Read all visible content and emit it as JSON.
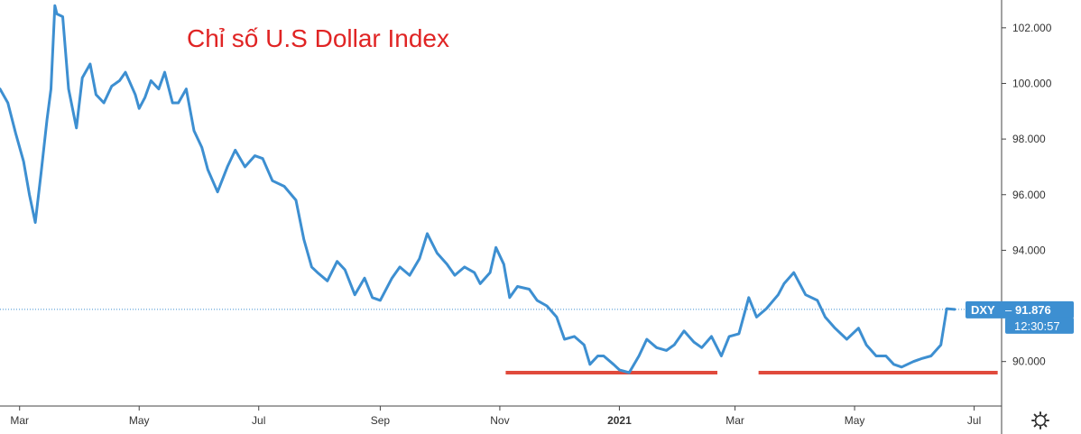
{
  "chart_data": {
    "type": "line",
    "title": "Chỉ số U.S Dollar Index",
    "xlabel": "",
    "ylabel": "",
    "x_ticks": [
      {
        "label": "Mar",
        "date": "2020-03-01",
        "bold": false
      },
      {
        "label": "May",
        "date": "2020-05-01",
        "bold": false
      },
      {
        "label": "Jul",
        "date": "2020-07-01",
        "bold": false
      },
      {
        "label": "Sep",
        "date": "2020-09-01",
        "bold": false
      },
      {
        "label": "Nov",
        "date": "2020-11-01",
        "bold": false
      },
      {
        "label": "2021",
        "date": "2021-01-01",
        "bold": true
      },
      {
        "label": "Mar",
        "date": "2021-03-01",
        "bold": false
      },
      {
        "label": "May",
        "date": "2021-05-01",
        "bold": false
      },
      {
        "label": "Jul",
        "date": "2021-07-01",
        "bold": false
      }
    ],
    "y_ticks": [
      "102.000",
      "100.000",
      "98.000",
      "96.000",
      "94.000",
      "90.000"
    ],
    "y_tick_values": [
      102,
      100,
      98,
      96,
      94,
      90
    ],
    "ylim": [
      88.4,
      103.0
    ],
    "xlim": [
      "2020-02-20",
      "2021-07-15"
    ],
    "series": [
      {
        "color": "#3d8fd1",
        "points": [
          [
            "2020-02-20",
            99.8
          ],
          [
            "2020-02-24",
            99.3
          ],
          [
            "2020-02-28",
            98.2
          ],
          [
            "2020-03-03",
            97.2
          ],
          [
            "2020-03-06",
            96.0
          ],
          [
            "2020-03-09",
            95.0
          ],
          [
            "2020-03-12",
            96.8
          ],
          [
            "2020-03-15",
            98.7
          ],
          [
            "2020-03-17",
            99.8
          ],
          [
            "2020-03-19",
            102.8
          ],
          [
            "2020-03-20",
            102.5
          ],
          [
            "2020-03-23",
            102.4
          ],
          [
            "2020-03-26",
            99.8
          ],
          [
            "2020-03-30",
            98.4
          ],
          [
            "2020-04-02",
            100.2
          ],
          [
            "2020-04-06",
            100.7
          ],
          [
            "2020-04-09",
            99.6
          ],
          [
            "2020-04-13",
            99.3
          ],
          [
            "2020-04-17",
            99.9
          ],
          [
            "2020-04-21",
            100.1
          ],
          [
            "2020-04-24",
            100.4
          ],
          [
            "2020-04-29",
            99.6
          ],
          [
            "2020-05-01",
            99.1
          ],
          [
            "2020-05-04",
            99.5
          ],
          [
            "2020-05-07",
            100.1
          ],
          [
            "2020-05-11",
            99.8
          ],
          [
            "2020-05-14",
            100.4
          ],
          [
            "2020-05-18",
            99.3
          ],
          [
            "2020-05-21",
            99.3
          ],
          [
            "2020-05-25",
            99.8
          ],
          [
            "2020-05-29",
            98.3
          ],
          [
            "2020-06-02",
            97.7
          ],
          [
            "2020-06-05",
            96.9
          ],
          [
            "2020-06-10",
            96.1
          ],
          [
            "2020-06-15",
            97.0
          ],
          [
            "2020-06-19",
            97.6
          ],
          [
            "2020-06-24",
            97.0
          ],
          [
            "2020-06-29",
            97.4
          ],
          [
            "2020-07-03",
            97.3
          ],
          [
            "2020-07-08",
            96.5
          ],
          [
            "2020-07-14",
            96.3
          ],
          [
            "2020-07-20",
            95.8
          ],
          [
            "2020-07-24",
            94.4
          ],
          [
            "2020-07-28",
            93.4
          ],
          [
            "2020-07-31",
            93.2
          ],
          [
            "2020-08-05",
            92.9
          ],
          [
            "2020-08-10",
            93.6
          ],
          [
            "2020-08-14",
            93.3
          ],
          [
            "2020-08-19",
            92.4
          ],
          [
            "2020-08-24",
            93.0
          ],
          [
            "2020-08-28",
            92.3
          ],
          [
            "2020-09-01",
            92.2
          ],
          [
            "2020-09-07",
            93.0
          ],
          [
            "2020-09-11",
            93.4
          ],
          [
            "2020-09-16",
            93.1
          ],
          [
            "2020-09-21",
            93.7
          ],
          [
            "2020-09-25",
            94.6
          ],
          [
            "2020-09-30",
            93.9
          ],
          [
            "2020-10-05",
            93.5
          ],
          [
            "2020-10-09",
            93.1
          ],
          [
            "2020-10-14",
            93.4
          ],
          [
            "2020-10-19",
            93.2
          ],
          [
            "2020-10-22",
            92.8
          ],
          [
            "2020-10-27",
            93.2
          ],
          [
            "2020-10-30",
            94.1
          ],
          [
            "2020-11-03",
            93.5
          ],
          [
            "2020-11-06",
            92.3
          ],
          [
            "2020-11-10",
            92.7
          ],
          [
            "2020-11-16",
            92.6
          ],
          [
            "2020-11-20",
            92.2
          ],
          [
            "2020-11-25",
            92.0
          ],
          [
            "2020-11-30",
            91.6
          ],
          [
            "2020-12-04",
            90.8
          ],
          [
            "2020-12-09",
            90.9
          ],
          [
            "2020-12-14",
            90.6
          ],
          [
            "2020-12-17",
            89.9
          ],
          [
            "2020-12-21",
            90.2
          ],
          [
            "2020-12-24",
            90.2
          ],
          [
            "2020-12-29",
            89.9
          ],
          [
            "2021-01-01",
            89.7
          ],
          [
            "2021-01-06",
            89.6
          ],
          [
            "2021-01-11",
            90.2
          ],
          [
            "2021-01-15",
            90.8
          ],
          [
            "2021-01-20",
            90.5
          ],
          [
            "2021-01-25",
            90.4
          ],
          [
            "2021-01-29",
            90.6
          ],
          [
            "2021-02-03",
            91.1
          ],
          [
            "2021-02-08",
            90.7
          ],
          [
            "2021-02-12",
            90.5
          ],
          [
            "2021-02-17",
            90.9
          ],
          [
            "2021-02-22",
            90.2
          ],
          [
            "2021-02-26",
            90.9
          ],
          [
            "2021-03-03",
            91.0
          ],
          [
            "2021-03-08",
            92.3
          ],
          [
            "2021-03-12",
            91.6
          ],
          [
            "2021-03-17",
            91.9
          ],
          [
            "2021-03-23",
            92.4
          ],
          [
            "2021-03-26",
            92.8
          ],
          [
            "2021-03-31",
            93.2
          ],
          [
            "2021-04-06",
            92.4
          ],
          [
            "2021-04-12",
            92.2
          ],
          [
            "2021-04-16",
            91.6
          ],
          [
            "2021-04-21",
            91.2
          ],
          [
            "2021-04-27",
            90.8
          ],
          [
            "2021-05-03",
            91.2
          ],
          [
            "2021-05-07",
            90.6
          ],
          [
            "2021-05-12",
            90.2
          ],
          [
            "2021-05-17",
            90.2
          ],
          [
            "2021-05-21",
            89.9
          ],
          [
            "2021-05-25",
            89.8
          ],
          [
            "2021-05-31",
            90.0
          ],
          [
            "2021-06-04",
            90.1
          ],
          [
            "2021-06-09",
            90.2
          ],
          [
            "2021-06-14",
            90.6
          ],
          [
            "2021-06-17",
            91.9
          ],
          [
            "2021-06-21",
            91.876
          ]
        ]
      }
    ],
    "support_lines": [
      {
        "from": "2020-11-04",
        "to": "2021-02-20",
        "value": 89.6,
        "color": "#e04a3c"
      },
      {
        "from": "2021-03-13",
        "to": "2021-07-13",
        "value": 89.6,
        "color": "#e04a3c"
      }
    ],
    "current_value_tag": {
      "symbol": "DXY",
      "value": "91.876",
      "time": "12:30:57",
      "price": 91.876,
      "color": "#3d8fd1"
    },
    "grid": false,
    "title_color": "#e02424"
  },
  "toolbar": {
    "settings_icon": "gear-icon"
  }
}
